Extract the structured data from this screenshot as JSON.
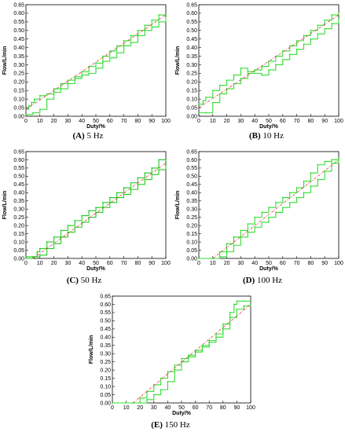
{
  "chart_data": [
    {
      "type": "line",
      "caption": "(A) 5 Hz",
      "caption_letter": "(A)",
      "caption_rest": " 5 Hz",
      "xlabel": "Duty/%",
      "ylabel": "Flow/L/min",
      "xlim": [
        0,
        100
      ],
      "ylim": [
        0,
        0.65
      ],
      "xticks": [
        0,
        10,
        20,
        30,
        40,
        50,
        60,
        70,
        80,
        90,
        100
      ],
      "yticks": [
        "0.00",
        "0.05",
        "0.10",
        "0.15",
        "0.20",
        "0.25",
        "0.30",
        "0.35",
        "0.40",
        "0.45",
        "0.50",
        "0.55",
        "0.60",
        "0.65"
      ],
      "grid": false,
      "series": [
        {
          "role": "measured-up",
          "color": "#33dd33",
          "x": [
            0,
            2,
            4,
            6,
            10,
            15,
            20,
            25,
            30,
            35,
            40,
            45,
            50,
            55,
            60,
            65,
            70,
            75,
            80,
            85,
            90,
            95,
            100
          ],
          "y": [
            0.04,
            0.06,
            0.08,
            0.1,
            0.12,
            0.13,
            0.16,
            0.19,
            0.21,
            0.23,
            0.26,
            0.29,
            0.31,
            0.35,
            0.38,
            0.41,
            0.44,
            0.47,
            0.5,
            0.53,
            0.56,
            0.59,
            0.59
          ]
        },
        {
          "role": "measured-down",
          "color": "#33dd33",
          "x": [
            0,
            5,
            10,
            15,
            20,
            25,
            30,
            35,
            40,
            45,
            50,
            55,
            60,
            65,
            70,
            75,
            80,
            85,
            90,
            95,
            100
          ],
          "y": [
            0.01,
            0.02,
            0.04,
            0.1,
            0.14,
            0.16,
            0.19,
            0.22,
            0.24,
            0.25,
            0.28,
            0.32,
            0.34,
            0.37,
            0.41,
            0.43,
            0.47,
            0.5,
            0.52,
            0.55,
            0.58
          ]
        },
        {
          "role": "fit",
          "color": "#dd3333",
          "x": [
            0,
            100
          ],
          "y": [
            0.04,
            0.59
          ]
        }
      ]
    },
    {
      "type": "line",
      "caption": "(B) 10 Hz",
      "caption_letter": "(B)",
      "caption_rest": " 10 Hz",
      "xlabel": "Duty/%",
      "ylabel": "Flow/L/min",
      "xlim": [
        0,
        100
      ],
      "ylim": [
        0,
        0.65
      ],
      "xticks": [
        0,
        10,
        20,
        30,
        40,
        50,
        60,
        70,
        80,
        90,
        100
      ],
      "yticks": [
        "0.00",
        "0.05",
        "0.10",
        "0.15",
        "0.20",
        "0.25",
        "0.30",
        "0.35",
        "0.40",
        "0.45",
        "0.50",
        "0.55",
        "0.60",
        "0.65"
      ],
      "grid": false,
      "series": [
        {
          "role": "measured-up",
          "color": "#33dd33",
          "x": [
            0,
            3,
            5,
            10,
            15,
            20,
            25,
            30,
            35,
            40,
            45,
            50,
            55,
            60,
            65,
            70,
            75,
            80,
            85,
            90,
            95,
            100
          ],
          "y": [
            0.07,
            0.09,
            0.11,
            0.15,
            0.18,
            0.21,
            0.24,
            0.28,
            0.26,
            0.27,
            0.29,
            0.32,
            0.35,
            0.38,
            0.41,
            0.44,
            0.47,
            0.5,
            0.53,
            0.56,
            0.59,
            0.6
          ]
        },
        {
          "role": "measured-down",
          "color": "#33dd33",
          "x": [
            0,
            5,
            10,
            15,
            20,
            25,
            30,
            35,
            40,
            45,
            50,
            55,
            60,
            65,
            70,
            75,
            80,
            85,
            90,
            95,
            100
          ],
          "y": [
            0.02,
            0.02,
            0.08,
            0.13,
            0.16,
            0.19,
            0.22,
            0.25,
            0.25,
            0.24,
            0.27,
            0.3,
            0.33,
            0.36,
            0.39,
            0.42,
            0.45,
            0.48,
            0.51,
            0.54,
            0.57
          ]
        },
        {
          "role": "fit",
          "color": "#dd3333",
          "x": [
            0,
            100
          ],
          "y": [
            0.05,
            0.59
          ]
        }
      ]
    },
    {
      "type": "line",
      "caption": "(C) 50 Hz",
      "caption_letter": "(C)",
      "caption_rest": " 50 Hz",
      "xlabel": "Duty/%",
      "ylabel": "Flow/L/min",
      "xlim": [
        0,
        100
      ],
      "ylim": [
        0,
        0.65
      ],
      "xticks": [
        0,
        10,
        20,
        30,
        40,
        50,
        60,
        70,
        80,
        90,
        100
      ],
      "yticks": [
        "0.00",
        "0.05",
        "0.10",
        "0.15",
        "0.20",
        "0.25",
        "0.30",
        "0.35",
        "0.40",
        "0.45",
        "0.50",
        "0.55",
        "0.60",
        "0.65"
      ],
      "grid": false,
      "series": [
        {
          "role": "measured-up",
          "color": "#22cc22",
          "x": [
            0,
            5,
            8,
            10,
            15,
            20,
            25,
            30,
            35,
            40,
            45,
            50,
            55,
            60,
            65,
            70,
            75,
            80,
            85,
            90,
            95,
            100
          ],
          "y": [
            0.01,
            0.01,
            0.04,
            0.06,
            0.1,
            0.13,
            0.17,
            0.2,
            0.23,
            0.26,
            0.29,
            0.31,
            0.34,
            0.37,
            0.4,
            0.43,
            0.46,
            0.49,
            0.52,
            0.55,
            0.6,
            0.59
          ]
        },
        {
          "role": "measured-down",
          "color": "#22cc22",
          "x": [
            0,
            5,
            10,
            15,
            20,
            25,
            30,
            35,
            40,
            45,
            50,
            55,
            60,
            65,
            70,
            75,
            80,
            85,
            90,
            95,
            100
          ],
          "y": [
            0.0,
            0.01,
            0.02,
            0.06,
            0.09,
            0.13,
            0.16,
            0.19,
            0.22,
            0.25,
            0.28,
            0.31,
            0.34,
            0.37,
            0.39,
            0.42,
            0.45,
            0.48,
            0.51,
            0.54,
            0.57
          ]
        },
        {
          "role": "fit",
          "color": "#dd3333",
          "x": [
            5,
            100
          ],
          "y": [
            0.0,
            0.58
          ]
        }
      ]
    },
    {
      "type": "line",
      "caption": "(D) 100 Hz",
      "caption_letter": "(D)",
      "caption_rest": " 100 Hz",
      "xlabel": "Duty/%",
      "ylabel": "Flow/L/min",
      "xlim": [
        0,
        100
      ],
      "ylim": [
        0,
        0.65
      ],
      "xticks": [
        0,
        10,
        20,
        30,
        40,
        50,
        60,
        70,
        80,
        90,
        100
      ],
      "yticks": [
        "0.00",
        "0.05",
        "0.10",
        "0.15",
        "0.20",
        "0.25",
        "0.30",
        "0.35",
        "0.40",
        "0.45",
        "0.50",
        "0.55",
        "0.60",
        "0.65"
      ],
      "grid": false,
      "series": [
        {
          "role": "measured-up",
          "color": "#33dd33",
          "x": [
            0,
            10,
            15,
            20,
            25,
            30,
            35,
            40,
            45,
            50,
            55,
            60,
            65,
            70,
            75,
            80,
            85,
            90,
            95,
            100
          ],
          "y": [
            0.0,
            0.0,
            0.04,
            0.09,
            0.13,
            0.17,
            0.21,
            0.25,
            0.28,
            0.31,
            0.34,
            0.37,
            0.4,
            0.43,
            0.47,
            0.52,
            0.57,
            0.59,
            0.6,
            0.61
          ]
        },
        {
          "role": "measured-down",
          "color": "#33dd33",
          "x": [
            0,
            10,
            15,
            20,
            25,
            30,
            35,
            40,
            45,
            50,
            55,
            60,
            65,
            70,
            75,
            80,
            85,
            90,
            95,
            100
          ],
          "y": [
            0.0,
            0.0,
            0.01,
            0.04,
            0.08,
            0.13,
            0.16,
            0.19,
            0.22,
            0.25,
            0.28,
            0.31,
            0.34,
            0.37,
            0.4,
            0.44,
            0.48,
            0.53,
            0.58,
            0.6
          ]
        },
        {
          "role": "fit",
          "color": "#dd3333",
          "x": [
            10,
            100
          ],
          "y": [
            0.0,
            0.6
          ]
        }
      ]
    },
    {
      "type": "line",
      "caption": "(E) 150 Hz",
      "caption_letter": "(E)",
      "caption_rest": " 150 Hz",
      "xlabel": "Duty/%",
      "ylabel": "Flow/L/min",
      "xlim": [
        0,
        100
      ],
      "ylim": [
        0,
        0.65
      ],
      "xticks": [
        0,
        10,
        20,
        30,
        40,
        50,
        60,
        70,
        80,
        90,
        100
      ],
      "yticks": [
        "0.00",
        "0.05",
        "0.10",
        "0.15",
        "0.20",
        "0.25",
        "0.30",
        "0.35",
        "0.40",
        "0.45",
        "0.50",
        "0.55",
        "0.60",
        "0.65"
      ],
      "grid": false,
      "series": [
        {
          "role": "measured-up",
          "color": "#33dd33",
          "x": [
            0,
            15,
            20,
            25,
            30,
            35,
            40,
            45,
            50,
            55,
            60,
            65,
            70,
            75,
            80,
            85,
            88,
            90,
            95,
            100
          ],
          "y": [
            0.0,
            0.0,
            0.03,
            0.07,
            0.11,
            0.15,
            0.19,
            0.23,
            0.27,
            0.29,
            0.32,
            0.35,
            0.38,
            0.42,
            0.48,
            0.55,
            0.6,
            0.62,
            0.62,
            0.62
          ]
        },
        {
          "role": "measured-down",
          "color": "#33dd33",
          "x": [
            0,
            20,
            25,
            30,
            35,
            40,
            45,
            50,
            55,
            60,
            65,
            70,
            75,
            80,
            85,
            90,
            95,
            100
          ],
          "y": [
            0.0,
            0.0,
            0.02,
            0.05,
            0.08,
            0.13,
            0.2,
            0.25,
            0.28,
            0.31,
            0.34,
            0.37,
            0.4,
            0.45,
            0.52,
            0.57,
            0.59,
            0.6
          ]
        },
        {
          "role": "fit",
          "color": "#dd3333",
          "x": [
            15,
            100
          ],
          "y": [
            0.0,
            0.6
          ]
        }
      ]
    }
  ]
}
